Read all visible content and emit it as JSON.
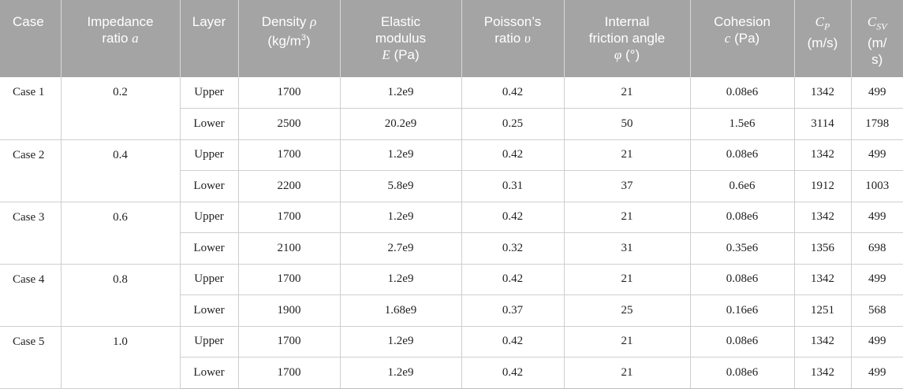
{
  "table": {
    "headers": {
      "case": "Case",
      "impedance_line1": "Impedance",
      "impedance_line2": "ratio",
      "impedance_sym": "a",
      "layer": "Layer",
      "density_line1": "Density",
      "density_sym": "ρ",
      "density_unit": "(kg/m",
      "density_exp": "3",
      "density_close": ")",
      "elastic_line1": "Elastic",
      "elastic_line2": "modulus",
      "elastic_sym": "E",
      "elastic_unit": " (Pa)",
      "poisson_line1": "Poisson’s",
      "poisson_line2": "ratio",
      "poisson_sym": "υ",
      "friction_line1": "Internal",
      "friction_line2": "friction angle",
      "friction_sym": "φ",
      "friction_unit": " (°)",
      "cohesion_line1": "Cohesion",
      "cohesion_sym": "c",
      "cohesion_unit": " (Pa)",
      "cp_sym": "C",
      "cp_sub": "P",
      "cp_unit": "(m/s)",
      "csv_sym": "C",
      "csv_sub": "SV",
      "csv_unit_1": "(m/",
      "csv_unit_2": "s)"
    },
    "cases": [
      {
        "case": "Case 1",
        "ratio": "0.2",
        "rows": [
          {
            "layer": "Upper",
            "density": "1700",
            "elastic": "1.2e9",
            "poisson": "0.42",
            "friction": "21",
            "cohesion": "0.08e6",
            "cp": "1342",
            "csv": "499"
          },
          {
            "layer": "Lower",
            "density": "2500",
            "elastic": "20.2e9",
            "poisson": "0.25",
            "friction": "50",
            "cohesion": "1.5e6",
            "cp": "3114",
            "csv": "1798"
          }
        ]
      },
      {
        "case": "Case 2",
        "ratio": "0.4",
        "rows": [
          {
            "layer": "Upper",
            "density": "1700",
            "elastic": "1.2e9",
            "poisson": "0.42",
            "friction": "21",
            "cohesion": "0.08e6",
            "cp": "1342",
            "csv": "499"
          },
          {
            "layer": "Lower",
            "density": "2200",
            "elastic": "5.8e9",
            "poisson": "0.31",
            "friction": "37",
            "cohesion": "0.6e6",
            "cp": "1912",
            "csv": "1003"
          }
        ]
      },
      {
        "case": "Case 3",
        "ratio": "0.6",
        "rows": [
          {
            "layer": "Upper",
            "density": "1700",
            "elastic": "1.2e9",
            "poisson": "0.42",
            "friction": "21",
            "cohesion": "0.08e6",
            "cp": "1342",
            "csv": "499"
          },
          {
            "layer": "Lower",
            "density": "2100",
            "elastic": "2.7e9",
            "poisson": "0.32",
            "friction": "31",
            "cohesion": "0.35e6",
            "cp": "1356",
            "csv": "698"
          }
        ]
      },
      {
        "case": "Case 4",
        "ratio": "0.8",
        "rows": [
          {
            "layer": "Upper",
            "density": "1700",
            "elastic": "1.2e9",
            "poisson": "0.42",
            "friction": "21",
            "cohesion": "0.08e6",
            "cp": "1342",
            "csv": "499"
          },
          {
            "layer": "Lower",
            "density": "1900",
            "elastic": "1.68e9",
            "poisson": "0.37",
            "friction": "25",
            "cohesion": "0.16e6",
            "cp": "1251",
            "csv": "568"
          }
        ]
      },
      {
        "case": "Case 5",
        "ratio": "1.0",
        "rows": [
          {
            "layer": "Upper",
            "density": "1700",
            "elastic": "1.2e9",
            "poisson": "0.42",
            "friction": "21",
            "cohesion": "0.08e6",
            "cp": "1342",
            "csv": "499"
          },
          {
            "layer": "Lower",
            "density": "1700",
            "elastic": "1.2e9",
            "poisson": "0.42",
            "friction": "21",
            "cohesion": "0.08e6",
            "cp": "1342",
            "csv": "499"
          }
        ]
      }
    ]
  }
}
